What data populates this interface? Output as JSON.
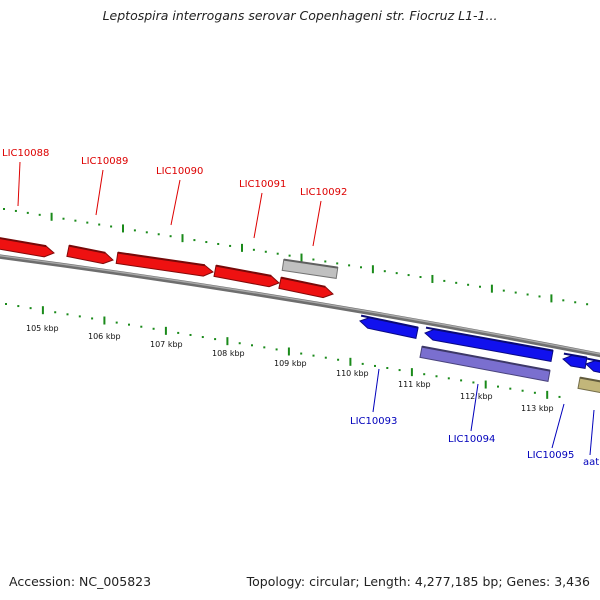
{
  "title": "Leptospira interrogans serovar Copenhageni str. Fiocruz L1-1...",
  "footer": {
    "accession": "Accession: NC_005823",
    "summary": "Topology: circular; Length: 4,277,185 bp; Genes: 3,436"
  },
  "colors": {
    "forward_gene": "#ee1111",
    "reverse_gene": "#1111ee",
    "grey_feature": "#c0c0c0",
    "purple_feature": "#7a6fcf",
    "olive_feature": "#c2b67a",
    "backbone": "#888888",
    "tick": "#1a8a1a",
    "forward_label": "#dd0000",
    "reverse_label": "#0000bb",
    "kbp_label": "#111111"
  },
  "scale": {
    "unit": "kbp",
    "ticks": [
      "105 kbp",
      "106 kbp",
      "107 kbp",
      "108 kbp",
      "109 kbp",
      "110 kbp",
      "111 kbp",
      "112 kbp",
      "113 kbp"
    ]
  },
  "genes": {
    "forward": [
      "LIC10088",
      "LIC10089",
      "LIC10090",
      "LIC10091",
      "LIC10092"
    ],
    "reverse": [
      "LIC10093",
      "LIC10094",
      "LIC10095",
      "aat"
    ]
  },
  "icons": {
    "forward_arrow": "right-arrow-gene-icon",
    "reverse_arrow": "left-arrow-gene-icon"
  }
}
